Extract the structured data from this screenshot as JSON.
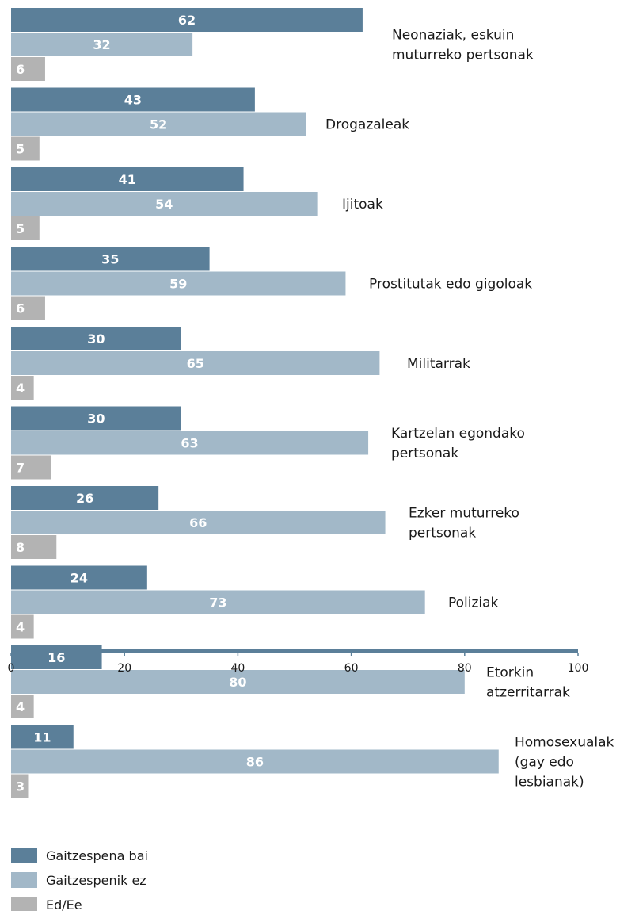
{
  "chart_data": {
    "type": "bar",
    "orientation": "horizontal",
    "categories": [
      [
        "Neonaziak, eskuin",
        "muturreko pertsonak"
      ],
      [
        "Drogazaleak"
      ],
      [
        "Ijitoak"
      ],
      [
        "Prostitutak edo gigoloak"
      ],
      [
        "Militarrak"
      ],
      [
        "Kartzelan egondako",
        "pertsonak"
      ],
      [
        "Ezker muturreko",
        "pertsonak"
      ],
      [
        "Poliziak"
      ],
      [
        "Etorkin",
        "atzerritarrak"
      ],
      [
        "Homosexualak",
        "(gay edo",
        "lesbianak)"
      ]
    ],
    "series": [
      {
        "name": "Gaitzespena bai",
        "color": "#5b7f99",
        "values": [
          62,
          43,
          41,
          35,
          30,
          30,
          26,
          24,
          16,
          11
        ]
      },
      {
        "name": "Gaitzespenik ez",
        "color": "#a2b8c8",
        "values": [
          32,
          52,
          54,
          59,
          65,
          63,
          66,
          73,
          80,
          86
        ]
      },
      {
        "name": "Ed/Ee",
        "color": "#b3b3b3",
        "values": [
          6,
          5,
          5,
          6,
          4,
          7,
          8,
          4,
          4,
          3
        ]
      }
    ],
    "xlim": [
      0,
      100
    ],
    "xticks": [
      0,
      20,
      40,
      60,
      80,
      100
    ],
    "xlabel": "",
    "ylabel": "",
    "axis_color": "#5b7f99",
    "legend_position": "bottom-left",
    "grid": false
  }
}
